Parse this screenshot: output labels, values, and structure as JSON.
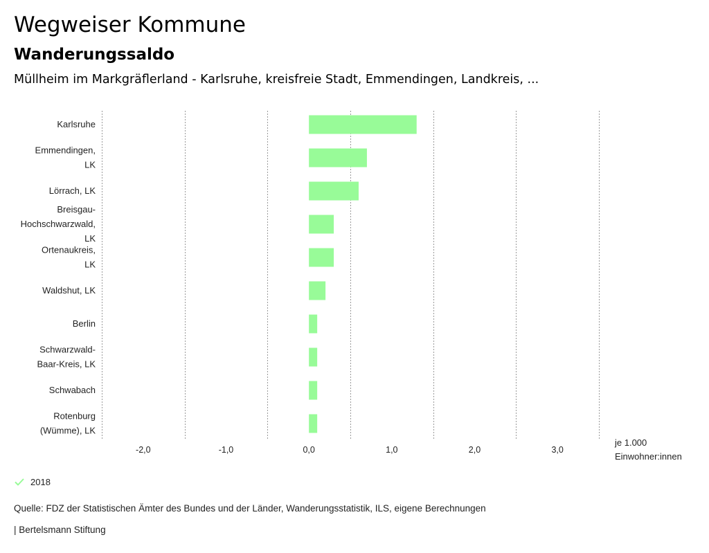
{
  "header": {
    "title": "Wegweiser Kommune",
    "subtitle": "Wanderungssaldo",
    "places": "Müllheim im Markgräflerland - Karlsruhe, kreisfreie Stadt, Emmendingen, Landkreis, ..."
  },
  "chart_data": {
    "type": "bar",
    "orientation": "horizontal",
    "categories": [
      [
        "Karlsruhe"
      ],
      [
        "Emmendingen,",
        "LK"
      ],
      [
        "Lörrach, LK"
      ],
      [
        "Breisgau-",
        "Hochschwarzwald,",
        "LK"
      ],
      [
        "Ortenaukreis,",
        "LK"
      ],
      [
        "Waldshut, LK"
      ],
      [
        "Berlin"
      ],
      [
        "Schwarzwald-",
        "Baar-Kreis, LK"
      ],
      [
        "Schwabach"
      ],
      [
        "Rotenburg",
        "(Wümme), LK"
      ]
    ],
    "series": [
      {
        "name": "2018",
        "values": [
          1.3,
          0.7,
          0.6,
          0.3,
          0.3,
          0.2,
          0.1,
          0.1,
          0.1,
          0.1
        ]
      }
    ],
    "xlim": [
      -2.5,
      3.5
    ],
    "xticks": [
      -2,
      -1,
      0,
      1,
      2,
      3
    ],
    "xtick_labels": [
      "-2,0",
      "-1,0",
      "0,0",
      "1,0",
      "2,0",
      "3,0"
    ],
    "grid_lines_at": [
      -2.5,
      -1.5,
      -0.5,
      0.5,
      1.5,
      2.5,
      3.5
    ],
    "xlabel": [
      "je 1.000",
      "Einwohner:innen"
    ],
    "bar_color": "#98fb98",
    "grid": true,
    "legend_position": "bottom-left"
  },
  "legend": {
    "label": "2018",
    "icon": "check-icon"
  },
  "footer": {
    "source": "Quelle: FDZ der Statistischen Ämter des Bundes und der Länder, Wanderungsstatistik, ILS, eigene Berechnungen",
    "brand": "| Bertelsmann Stiftung"
  }
}
